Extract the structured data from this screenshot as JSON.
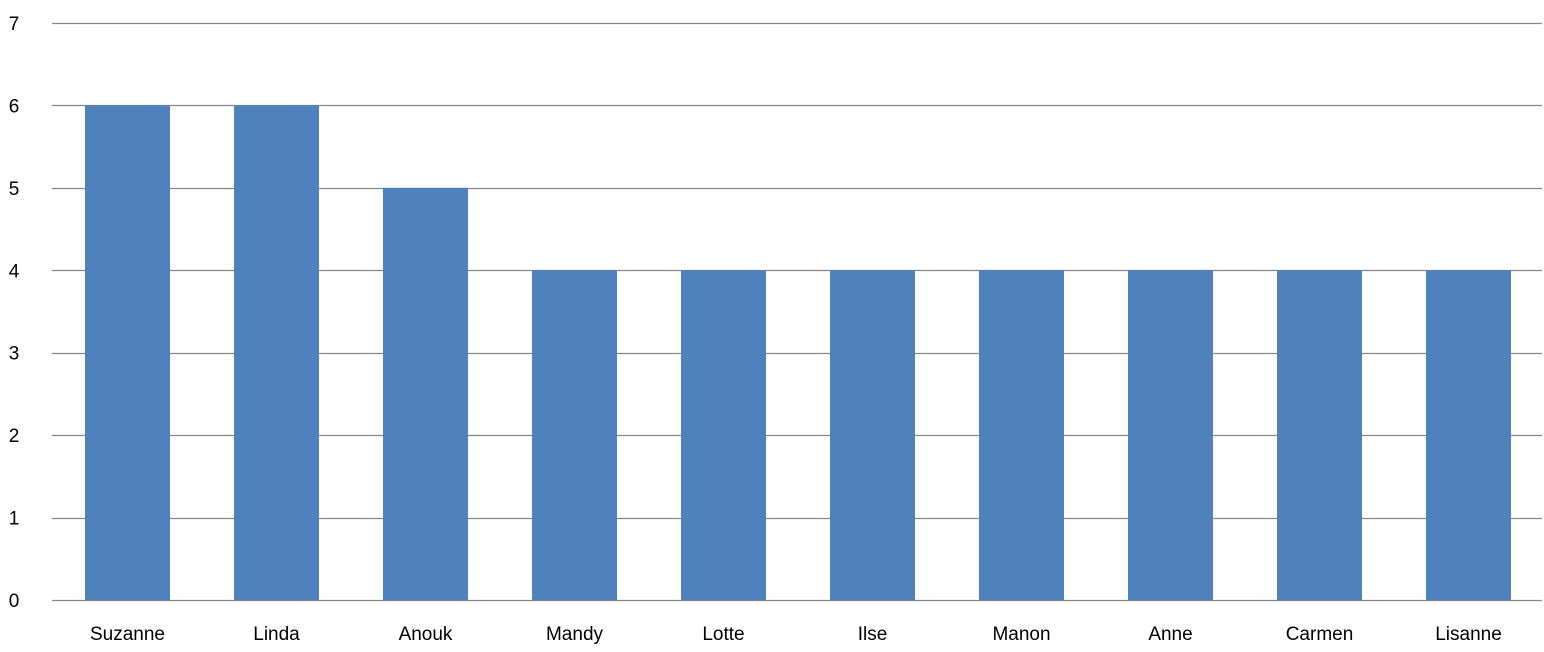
{
  "chart_data": {
    "type": "bar",
    "title": "",
    "xlabel": "",
    "ylabel": "",
    "categories": [
      "Suzanne",
      "Linda",
      "Anouk",
      "Mandy",
      "Lotte",
      "Ilse",
      "Manon",
      "Anne",
      "Carmen",
      "Lisanne"
    ],
    "values": [
      6,
      6,
      5,
      4,
      4,
      4,
      4,
      4,
      4,
      4
    ],
    "ylim": [
      0,
      7
    ],
    "yticks": [
      0,
      1,
      2,
      3,
      4,
      5,
      6,
      7
    ],
    "grid": true,
    "legend": "none",
    "colors": {
      "bar": "#4F81BD",
      "grid": "#868686"
    }
  }
}
